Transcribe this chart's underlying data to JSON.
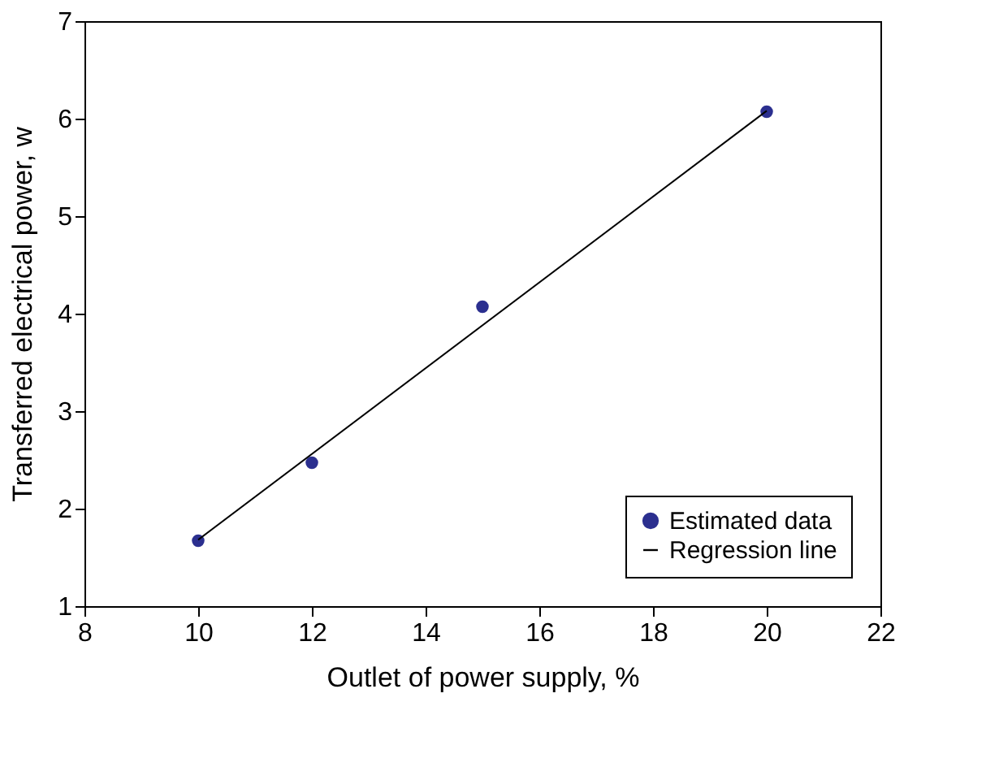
{
  "chart_data": {
    "type": "scatter",
    "xlabel": "Outlet of power supply, %",
    "ylabel": "Transferred electrical power, w",
    "series": [
      {
        "name": "Estimated data",
        "color": "#2b2f8f",
        "x": [
          10,
          12,
          15,
          20
        ],
        "values": [
          1.67,
          2.47,
          4.07,
          6.07
        ],
        "marker": "circle"
      },
      {
        "name": "Regression line",
        "type": "line",
        "color": "#000000",
        "x": [
          10,
          20
        ],
        "values": [
          1.68,
          6.08
        ],
        "line_style": "solid"
      }
    ],
    "xlim": [
      8,
      22
    ],
    "xticks": [
      8,
      10,
      12,
      14,
      16,
      18,
      20,
      22
    ],
    "ylim": [
      1,
      7
    ],
    "yticks": [
      1,
      2,
      3,
      4,
      5,
      6,
      7
    ],
    "grid": false,
    "legend": "bottom right"
  }
}
